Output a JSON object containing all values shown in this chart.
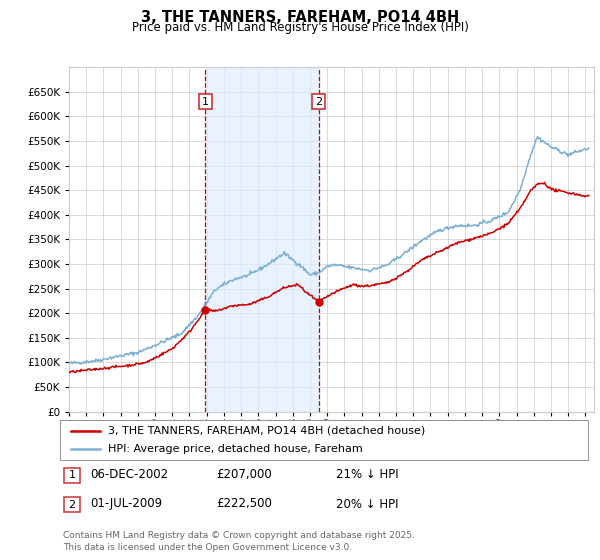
{
  "title": "3, THE TANNERS, FAREHAM, PO14 4BH",
  "subtitle": "Price paid vs. HM Land Registry's House Price Index (HPI)",
  "ylim": [
    0,
    700000
  ],
  "yticks": [
    0,
    50000,
    100000,
    150000,
    200000,
    250000,
    300000,
    350000,
    400000,
    450000,
    500000,
    550000,
    600000,
    650000
  ],
  "xlim_start": 1995.0,
  "xlim_end": 2025.5,
  "background_color": "#ffffff",
  "plot_bg_color": "#ffffff",
  "grid_color": "#cccccc",
  "sale1_date": 2002.92,
  "sale1_price": 207000,
  "sale2_date": 2009.5,
  "sale2_price": 222500,
  "legend_line1": "3, THE TANNERS, FAREHAM, PO14 4BH (detached house)",
  "legend_line2": "HPI: Average price, detached house, Fareham",
  "footnote": "Contains HM Land Registry data © Crown copyright and database right 2025.\nThis data is licensed under the Open Government Licence v3.0.",
  "line_red": "#cc0000",
  "line_blue": "#7aafd4",
  "shade_color": "#ddeeff",
  "marker_box_color": "#cc3333",
  "xtick_years": [
    1995,
    1996,
    1997,
    1998,
    1999,
    2000,
    2001,
    2002,
    2003,
    2004,
    2005,
    2006,
    2007,
    2008,
    2009,
    2010,
    2011,
    2012,
    2013,
    2014,
    2015,
    2016,
    2017,
    2018,
    2019,
    2020,
    2021,
    2022,
    2023,
    2024,
    2025
  ],
  "ann1_num": "1",
  "ann1_date": "06-DEC-2002",
  "ann1_price": "£207,000",
  "ann1_pct": "21% ↓ HPI",
  "ann2_num": "2",
  "ann2_date": "01-JUL-2009",
  "ann2_price": "£222,500",
  "ann2_pct": "20% ↓ HPI"
}
